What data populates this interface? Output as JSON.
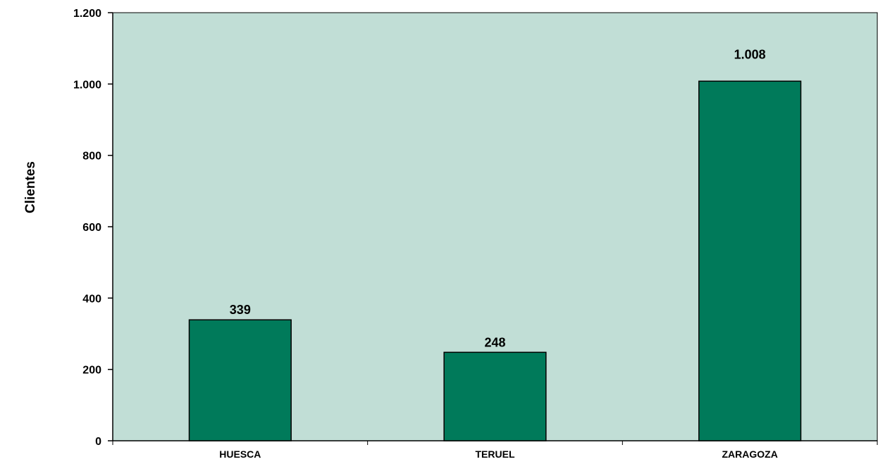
{
  "chart_data": {
    "type": "bar",
    "categories": [
      "HUESCA",
      "TERUEL",
      "ZARAGOZA"
    ],
    "values": [
      339,
      248,
      1008
    ],
    "data_labels": [
      "339",
      "248",
      "1.008"
    ],
    "title": "",
    "xlabel": "",
    "ylabel": "Clientes",
    "ylim": [
      0,
      1200
    ],
    "y_ticks": [
      0,
      200,
      400,
      600,
      800,
      1000,
      1200
    ],
    "y_tick_labels": [
      "0",
      "200",
      "400",
      "600",
      "800",
      "1.000",
      "1.200"
    ],
    "grid": false,
    "legend": "none",
    "colors": {
      "plot_background": "#c1ded6",
      "bar_fill": "#007a5a",
      "bar_stroke": "#000000",
      "axis": "#000000"
    }
  }
}
